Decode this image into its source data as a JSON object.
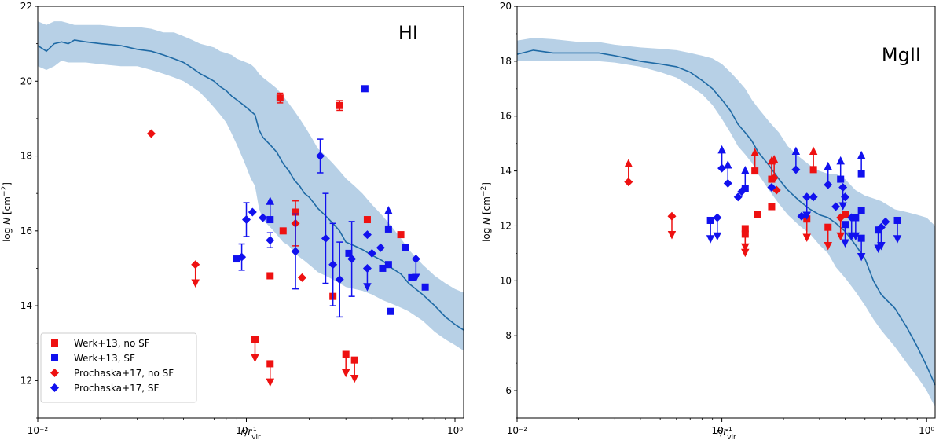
{
  "legend": {
    "entries": [
      {
        "label": "Werk+13, no SF",
        "marker": "square",
        "color": "#ee1111"
      },
      {
        "label": "Werk+13, SF",
        "marker": "square",
        "color": "#1111ee"
      },
      {
        "label": "Prochaska+17, no SF",
        "marker": "diamond",
        "color": "#ee1111"
      },
      {
        "label": "Prochaska+17, SF",
        "marker": "diamond",
        "color": "#1111ee"
      }
    ]
  },
  "colors": {
    "nosf": "#ee1111",
    "sf": "#1111ee",
    "line": "#1f6aa5",
    "band": "#b7d0e6"
  },
  "chart_data": [
    {
      "type": "scatter",
      "title": "HI",
      "xlabel": "r/r_vir",
      "ylabel": "log N [cm^-2]",
      "xlim": [
        0.01,
        1.1
      ],
      "ylim": [
        11,
        22
      ],
      "xscale": "log",
      "x_tick_labels": [
        "10⁻²",
        "10⁻¹",
        "10⁰"
      ],
      "y_ticks": [
        12,
        14,
        16,
        18,
        20,
        22
      ],
      "legend_position": "lower-left",
      "model": {
        "x": [
          0.01,
          0.011,
          0.012,
          0.013,
          0.014,
          0.015,
          0.017,
          0.02,
          0.025,
          0.03,
          0.035,
          0.04,
          0.045,
          0.05,
          0.055,
          0.06,
          0.065,
          0.07,
          0.075,
          0.08,
          0.085,
          0.09,
          0.095,
          0.1,
          0.105,
          0.11,
          0.115,
          0.12,
          0.13,
          0.14,
          0.15,
          0.16,
          0.17,
          0.18,
          0.19,
          0.2,
          0.21,
          0.22,
          0.24,
          0.26,
          0.28,
          0.3,
          0.33,
          0.36,
          0.4,
          0.45,
          0.5,
          0.55,
          0.6,
          0.7,
          0.8,
          0.9,
          1.0,
          1.1
        ],
        "median": [
          20.95,
          20.8,
          21.0,
          21.05,
          21.0,
          21.1,
          21.05,
          21.0,
          20.95,
          20.85,
          20.8,
          20.7,
          20.6,
          20.5,
          20.35,
          20.2,
          20.1,
          20.0,
          19.85,
          19.75,
          19.6,
          19.5,
          19.4,
          19.3,
          19.2,
          19.1,
          18.7,
          18.5,
          18.3,
          18.1,
          17.8,
          17.6,
          17.35,
          17.2,
          17.0,
          16.9,
          16.75,
          16.6,
          16.4,
          16.2,
          16.0,
          15.7,
          15.6,
          15.5,
          15.35,
          15.2,
          15.0,
          14.85,
          14.6,
          14.3,
          14.0,
          13.7,
          13.5,
          13.35
        ],
        "lower": [
          20.4,
          20.3,
          20.4,
          20.55,
          20.5,
          20.5,
          20.5,
          20.45,
          20.4,
          20.4,
          20.3,
          20.2,
          20.1,
          20.0,
          19.85,
          19.7,
          19.5,
          19.3,
          19.1,
          18.9,
          18.6,
          18.3,
          18.0,
          17.7,
          17.4,
          17.2,
          16.6,
          16.3,
          16.1,
          15.9,
          15.7,
          15.6,
          15.4,
          15.3,
          15.2,
          15.1,
          15.0,
          14.9,
          14.8,
          14.7,
          14.6,
          14.5,
          14.45,
          14.4,
          14.3,
          14.15,
          14.05,
          13.95,
          13.85,
          13.6,
          13.3,
          13.1,
          12.95,
          12.8
        ],
        "upper": [
          21.6,
          21.5,
          21.6,
          21.6,
          21.55,
          21.5,
          21.5,
          21.5,
          21.45,
          21.45,
          21.4,
          21.3,
          21.3,
          21.2,
          21.1,
          21.0,
          20.95,
          20.9,
          20.8,
          20.75,
          20.7,
          20.6,
          20.55,
          20.5,
          20.45,
          20.35,
          20.2,
          20.1,
          19.95,
          19.8,
          19.6,
          19.4,
          19.2,
          19.0,
          18.8,
          18.6,
          18.4,
          18.2,
          18.0,
          17.8,
          17.6,
          17.4,
          17.2,
          17.0,
          16.7,
          16.4,
          16.1,
          15.8,
          15.5,
          15.1,
          14.8,
          14.6,
          14.45,
          14.35
        ]
      },
      "series": [
        {
          "name": "Werk+13, no SF",
          "marker": "square",
          "color": "#ee1111",
          "points": [
            {
              "x": 0.145,
              "y": 19.55,
              "err": 0.13
            },
            {
              "x": 0.28,
              "y": 19.35,
              "err": 0.13
            },
            {
              "x": 0.172,
              "y": 16.5
            },
            {
              "x": 0.15,
              "y": 16.0
            },
            {
              "x": 0.38,
              "y": 16.3
            },
            {
              "x": 0.55,
              "y": 15.9
            },
            {
              "x": 0.13,
              "y": 14.8
            },
            {
              "x": 0.26,
              "y": 14.25
            },
            {
              "x": 0.11,
              "y": 13.1,
              "limit": "upper"
            },
            {
              "x": 0.13,
              "y": 12.45,
              "limit": "upper"
            },
            {
              "x": 0.3,
              "y": 12.7,
              "limit": "upper"
            },
            {
              "x": 0.33,
              "y": 12.55,
              "limit": "upper"
            }
          ]
        },
        {
          "name": "Werk+13, SF",
          "marker": "square",
          "color": "#1111ee",
          "points": [
            {
              "x": 0.37,
              "y": 19.8
            },
            {
              "x": 0.09,
              "y": 15.25
            },
            {
              "x": 0.13,
              "y": 16.3,
              "limit": "lower"
            },
            {
              "x": 0.31,
              "y": 15.4
            },
            {
              "x": 0.45,
              "y": 15.0
            },
            {
              "x": 0.48,
              "y": 15.1
            },
            {
              "x": 0.48,
              "y": 16.05,
              "limit": "lower"
            },
            {
              "x": 0.58,
              "y": 15.55
            },
            {
              "x": 0.62,
              "y": 14.75
            },
            {
              "x": 0.72,
              "y": 14.5
            },
            {
              "x": 0.49,
              "y": 13.85
            }
          ]
        },
        {
          "name": "Prochaska+17, no SF",
          "marker": "diamond",
          "color": "#ee1111",
          "points": [
            {
              "x": 0.035,
              "y": 18.6
            },
            {
              "x": 0.057,
              "y": 15.1,
              "limit": "upper"
            },
            {
              "x": 0.172,
              "y": 16.2,
              "err": 0.6
            },
            {
              "x": 0.185,
              "y": 14.75
            }
          ]
        },
        {
          "name": "Prochaska+17, SF",
          "marker": "diamond",
          "color": "#1111ee",
          "points": [
            {
              "x": 0.226,
              "y": 18.0,
              "err": 0.45
            },
            {
              "x": 0.095,
              "y": 15.3,
              "err": 0.35
            },
            {
              "x": 0.1,
              "y": 16.3,
              "err": 0.45
            },
            {
              "x": 0.107,
              "y": 16.5
            },
            {
              "x": 0.12,
              "y": 16.35
            },
            {
              "x": 0.13,
              "y": 15.75,
              "err": 0.2
            },
            {
              "x": 0.172,
              "y": 15.45,
              "err": 1.0
            },
            {
              "x": 0.24,
              "y": 15.8,
              "err": 1.2
            },
            {
              "x": 0.26,
              "y": 15.1,
              "err": 1.1
            },
            {
              "x": 0.28,
              "y": 14.7,
              "err": 1.0
            },
            {
              "x": 0.32,
              "y": 15.25,
              "err": 1.0
            },
            {
              "x": 0.38,
              "y": 15.0,
              "limit": "upper"
            },
            {
              "x": 0.38,
              "y": 15.9
            },
            {
              "x": 0.4,
              "y": 15.4
            },
            {
              "x": 0.44,
              "y": 15.55
            },
            {
              "x": 0.65,
              "y": 15.25,
              "limit": "upper"
            }
          ]
        }
      ]
    },
    {
      "type": "scatter",
      "title": "MgII",
      "xlabel": "r/r_vir",
      "ylabel": "log N [cm^-2]",
      "xlim": [
        0.01,
        1.1
      ],
      "ylim": [
        5,
        20
      ],
      "xscale": "log",
      "x_tick_labels": [
        "10⁻²",
        "10⁻¹",
        "10⁰"
      ],
      "y_ticks": [
        6,
        8,
        10,
        12,
        14,
        16,
        18,
        20
      ],
      "model": {
        "x": [
          0.01,
          0.012,
          0.015,
          0.02,
          0.025,
          0.03,
          0.04,
          0.05,
          0.06,
          0.07,
          0.08,
          0.09,
          0.1,
          0.11,
          0.12,
          0.13,
          0.14,
          0.15,
          0.17,
          0.19,
          0.21,
          0.24,
          0.27,
          0.3,
          0.33,
          0.36,
          0.4,
          0.45,
          0.5,
          0.55,
          0.6,
          0.7,
          0.8,
          0.9,
          1.0,
          1.1
        ],
        "median": [
          18.25,
          18.4,
          18.3,
          18.3,
          18.3,
          18.2,
          18.0,
          17.9,
          17.8,
          17.6,
          17.3,
          17.0,
          16.6,
          16.2,
          15.7,
          15.4,
          15.1,
          14.7,
          14.2,
          13.7,
          13.3,
          12.9,
          12.6,
          12.4,
          12.3,
          12.1,
          11.8,
          11.3,
          10.8,
          10.0,
          9.5,
          9.0,
          8.3,
          7.6,
          6.9,
          6.2
        ],
        "lower": [
          18.0,
          18.0,
          18.0,
          18.0,
          18.0,
          17.95,
          17.8,
          17.6,
          17.4,
          17.1,
          16.8,
          16.4,
          15.9,
          15.4,
          14.9,
          14.6,
          14.3,
          13.9,
          13.3,
          12.8,
          12.4,
          12.0,
          11.7,
          11.3,
          11.0,
          10.5,
          10.1,
          9.6,
          9.1,
          8.6,
          8.2,
          7.6,
          7.0,
          6.5,
          6.0,
          5.4
        ],
        "upper": [
          18.75,
          18.85,
          18.8,
          18.7,
          18.7,
          18.6,
          18.5,
          18.45,
          18.4,
          18.3,
          18.2,
          18.1,
          17.9,
          17.6,
          17.3,
          17.0,
          16.6,
          16.3,
          15.8,
          15.4,
          14.9,
          14.5,
          14.2,
          14.0,
          13.9,
          13.9,
          13.7,
          13.3,
          13.1,
          13.0,
          12.9,
          12.6,
          12.5,
          12.4,
          12.3,
          12.0
        ]
      },
      "series": [
        {
          "name": "Werk+13, no SF",
          "marker": "square",
          "color": "#ee1111",
          "points": [
            {
              "x": 0.145,
              "y": 14.0,
              "limit": "lower"
            },
            {
              "x": 0.175,
              "y": 13.7,
              "limit": "lower"
            },
            {
              "x": 0.28,
              "y": 14.05,
              "limit": "lower"
            },
            {
              "x": 0.15,
              "y": 12.4
            },
            {
              "x": 0.175,
              "y": 12.7
            },
            {
              "x": 0.13,
              "y": 11.9,
              "limit": "upper"
            },
            {
              "x": 0.13,
              "y": 11.7,
              "limit": "upper"
            },
            {
              "x": 0.26,
              "y": 12.25,
              "limit": "upper"
            },
            {
              "x": 0.33,
              "y": 11.95,
              "limit": "upper"
            },
            {
              "x": 0.4,
              "y": 12.4
            }
          ]
        },
        {
          "name": "Werk+13, SF",
          "marker": "square",
          "color": "#1111ee",
          "points": [
            {
              "x": 0.088,
              "y": 12.2,
              "limit": "upper"
            },
            {
              "x": 0.13,
              "y": 13.35,
              "limit": "lower"
            },
            {
              "x": 0.38,
              "y": 13.7,
              "limit": "lower"
            },
            {
              "x": 0.48,
              "y": 13.9,
              "limit": "lower"
            },
            {
              "x": 0.4,
              "y": 12.05,
              "limit": "upper"
            },
            {
              "x": 0.48,
              "y": 12.55
            },
            {
              "x": 0.48,
              "y": 11.55,
              "limit": "upper"
            },
            {
              "x": 0.58,
              "y": 11.85,
              "limit": "upper"
            },
            {
              "x": 0.72,
              "y": 12.2,
              "limit": "upper"
            },
            {
              "x": 0.45,
              "y": 12.3,
              "limit": "upper"
            }
          ]
        },
        {
          "name": "Prochaska+17, no SF",
          "marker": "diamond",
          "color": "#ee1111",
          "points": [
            {
              "x": 0.035,
              "y": 13.6,
              "limit": "lower"
            },
            {
              "x": 0.057,
              "y": 12.35,
              "limit": "upper"
            },
            {
              "x": 0.18,
              "y": 13.75,
              "limit": "lower"
            },
            {
              "x": 0.185,
              "y": 13.3
            },
            {
              "x": 0.38,
              "y": 12.3,
              "limit": "upper"
            }
          ]
        },
        {
          "name": "Prochaska+17, SF",
          "marker": "diamond",
          "color": "#1111ee",
          "points": [
            {
              "x": 0.1,
              "y": 14.1,
              "limit": "lower"
            },
            {
              "x": 0.107,
              "y": 13.55,
              "limit": "lower"
            },
            {
              "x": 0.095,
              "y": 12.3,
              "limit": "upper"
            },
            {
              "x": 0.12,
              "y": 13.05
            },
            {
              "x": 0.125,
              "y": 13.25
            },
            {
              "x": 0.175,
              "y": 13.4
            },
            {
              "x": 0.23,
              "y": 14.05,
              "limit": "lower"
            },
            {
              "x": 0.245,
              "y": 12.35
            },
            {
              "x": 0.26,
              "y": 13.05,
              "limit": "upper"
            },
            {
              "x": 0.28,
              "y": 13.05
            },
            {
              "x": 0.33,
              "y": 13.5,
              "limit": "lower"
            },
            {
              "x": 0.36,
              "y": 12.7
            },
            {
              "x": 0.39,
              "y": 13.4,
              "limit": "upper"
            },
            {
              "x": 0.4,
              "y": 13.05
            },
            {
              "x": 0.43,
              "y": 12.3,
              "limit": "upper"
            },
            {
              "x": 0.6,
              "y": 11.95,
              "limit": "upper"
            },
            {
              "x": 0.63,
              "y": 12.15
            }
          ]
        }
      ]
    }
  ]
}
